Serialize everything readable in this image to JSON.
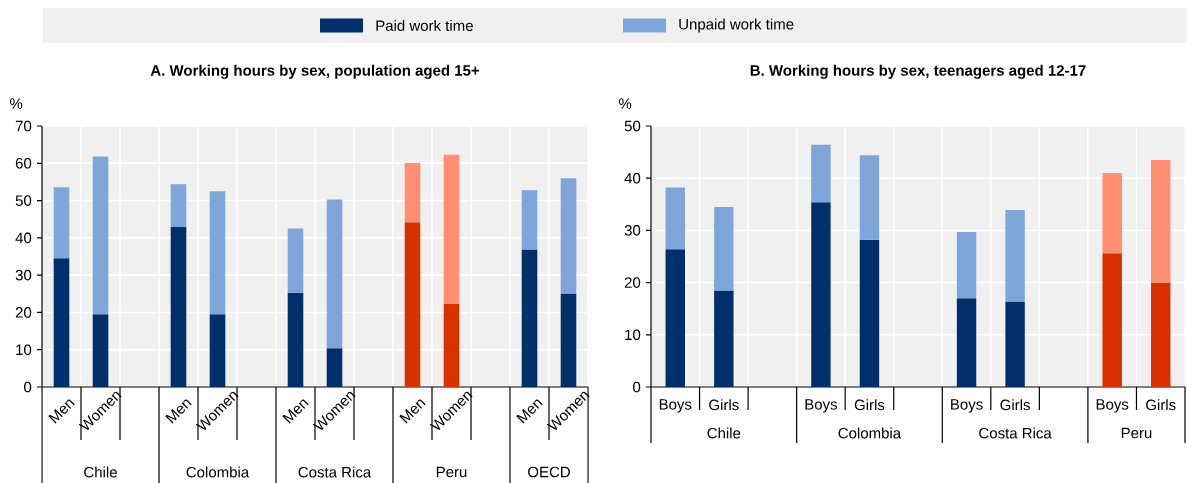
{
  "chart_data": [
    {
      "type": "bar",
      "stacked": true,
      "title": "A. Working hours by sex, population aged 15+",
      "ylabel": "%",
      "categories": [
        "Men",
        "Women",
        null,
        "Men",
        "Women",
        null,
        "Men",
        "Women",
        null,
        "Men",
        "Women",
        null,
        "Men",
        "Women"
      ],
      "series": [
        {
          "name": "Paid work time",
          "color": "#002f6c",
          "colors": [
            "#002f6c",
            "#002f6c",
            "#002f6c",
            "#002f6c",
            "#002f6c",
            "#002f6c",
            "#002f6c",
            "#002f6c",
            "#002f6c",
            "#d93000",
            "#d93000",
            "#002f6c",
            "#002f6c",
            "#002f6c"
          ],
          "values": [
            34.5,
            19.5,
            null,
            42.9,
            19.5,
            null,
            25.3,
            10.4,
            null,
            44.2,
            22.3,
            null,
            36.9,
            25.1
          ]
        },
        {
          "name": "Unpaid work time",
          "color": "#7fa6d9",
          "colors": [
            "#7fa6d9",
            "#7fa6d9",
            "#7fa6d9",
            "#7fa6d9",
            "#7fa6d9",
            "#7fa6d9",
            "#7fa6d9",
            "#7fa6d9",
            "#7fa6d9",
            "#ff8f70",
            "#ff8f70",
            "#7fa6d9",
            "#7fa6d9",
            "#7fa6d9"
          ],
          "values": [
            19.1,
            42.3,
            null,
            11.5,
            33.0,
            null,
            17.2,
            39.9,
            null,
            15.9,
            40.0,
            null,
            15.9,
            30.9
          ]
        }
      ],
      "ylim": [
        0,
        70
      ],
      "yticks": [
        0,
        10,
        20,
        30,
        40,
        50,
        60,
        70
      ],
      "grid": true,
      "legend": "top",
      "annotations": [
        "Chile",
        "Colombia",
        "Costa Rica",
        "Peru",
        "OECD"
      ]
    },
    {
      "type": "bar",
      "stacked": true,
      "title": "B. Working hours by sex, teenagers aged 12-17",
      "ylabel": "%",
      "categories": [
        "Boys",
        "Girls",
        null,
        "Boys",
        "Girls",
        null,
        "Boys",
        "Girls",
        null,
        "Boys",
        "Girls"
      ],
      "series": [
        {
          "colors": [
            "#002f6c",
            "#002f6c",
            "#002f6c",
            "#002f6c",
            "#002f6c",
            "#002f6c",
            "#002f6c",
            "#002f6c",
            "#002f6c",
            "#d93000",
            "#d93000"
          ],
          "values": [
            26.4,
            18.5,
            null,
            35.4,
            28.2,
            null,
            17.0,
            16.4,
            null,
            25.6,
            20.0
          ]
        },
        {
          "colors": [
            "#7fa6d9",
            "#7fa6d9",
            "#7fa6d9",
            "#7fa6d9",
            "#7fa6d9",
            "#7fa6d9",
            "#7fa6d9",
            "#7fa6d9",
            "#7fa6d9",
            "#ff8f70",
            "#ff8f70"
          ],
          "values": [
            11.8,
            16.0,
            null,
            11.0,
            16.2,
            null,
            12.7,
            17.5,
            null,
            15.4,
            23.5
          ]
        }
      ],
      "ylim": [
        0,
        50
      ],
      "yticks": [
        0,
        10,
        20,
        30,
        40,
        50
      ],
      "grid": true,
      "annotations": [
        "Chile",
        "Colombia",
        "Costa Rica",
        "Peru"
      ]
    }
  ]
}
